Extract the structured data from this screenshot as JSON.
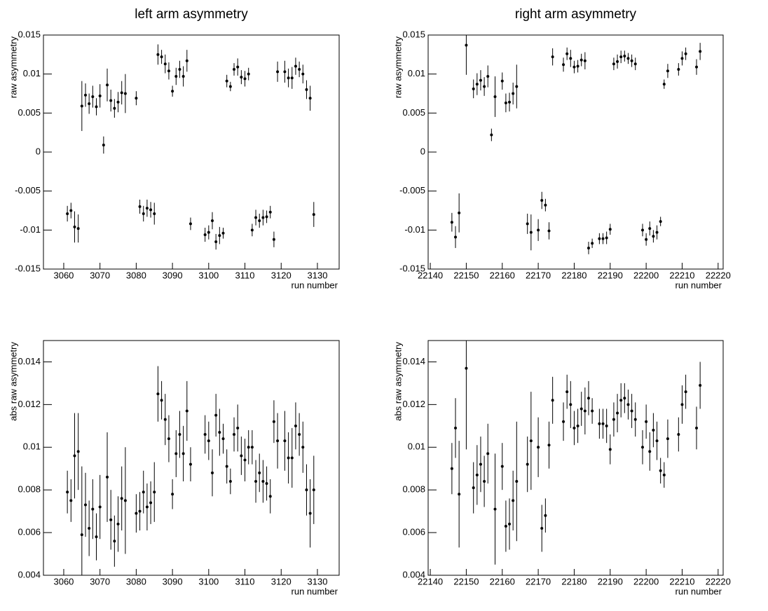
{
  "chart_data": [
    {
      "type": "scatter",
      "title": "left arm asymmetry",
      "x_label": "run number",
      "y_label": "raw asymmetry",
      "xlim": [
        3054.4,
        3136
      ],
      "ylim": [
        -0.015,
        0.015
      ],
      "xticks": [
        3060,
        3070,
        3080,
        3090,
        3100,
        3110,
        3120,
        3130
      ],
      "yticks": [
        -0.015,
        -0.01,
        -0.005,
        0,
        0.005,
        0.01,
        0.015
      ],
      "color": "#000000",
      "x": [
        3061,
        3062,
        3063,
        3064,
        3065,
        3066,
        3067,
        3068,
        3069,
        3070,
        3071,
        3072,
        3073,
        3074,
        3075,
        3076,
        3077,
        3080,
        3081,
        3082,
        3083,
        3084,
        3085,
        3086,
        3087,
        3088,
        3089,
        3090,
        3091,
        3092,
        3093,
        3094,
        3095,
        3099,
        3100,
        3101,
        3102,
        3103,
        3104,
        3105,
        3106,
        3107,
        3108,
        3109,
        3110,
        3111,
        3112,
        3113,
        3114,
        3115,
        3116,
        3117,
        3118,
        3119,
        3121,
        3122,
        3123,
        3124,
        3125,
        3126,
        3127,
        3128,
        3129
      ],
      "values": [
        -0.0079,
        -0.0075,
        -0.0096,
        -0.0098,
        0.0059,
        0.0073,
        0.0062,
        0.0071,
        0.0058,
        0.0072,
        0.0009,
        0.0086,
        0.0066,
        0.0056,
        0.0064,
        0.0076,
        0.0075,
        0.0069,
        -0.007,
        -0.0079,
        -0.0072,
        -0.0074,
        -0.0079,
        0.0125,
        0.0122,
        0.0113,
        0.0104,
        0.0078,
        0.0097,
        0.0106,
        0.0097,
        0.0117,
        -0.0092,
        -0.0106,
        -0.0103,
        -0.0088,
        -0.0115,
        -0.0107,
        -0.0104,
        0.0091,
        0.0084,
        0.0106,
        0.0109,
        0.0096,
        0.0094,
        0.01,
        -0.01,
        -0.0084,
        -0.0088,
        -0.0084,
        -0.0083,
        -0.0077,
        -0.0112,
        0.0103,
        0.0103,
        0.0095,
        0.0095,
        0.011,
        0.0106,
        0.01,
        0.008,
        0.0069,
        -0.008
      ],
      "errors": [
        0.001,
        0.001,
        0.002,
        0.0018,
        0.0032,
        0.0015,
        0.0013,
        0.0014,
        0.0011,
        0.0015,
        0.0011,
        0.0021,
        0.0014,
        0.0012,
        0.0013,
        0.0015,
        0.0025,
        0.0009,
        0.0009,
        0.001,
        0.0011,
        0.001,
        0.0014,
        0.0013,
        0.0009,
        0.0012,
        0.0011,
        0.0007,
        0.0011,
        0.0011,
        0.0013,
        0.0014,
        0.0008,
        0.0009,
        0.0009,
        0.0011,
        0.001,
        0.0011,
        0.0007,
        0.0008,
        0.0006,
        0.0008,
        0.0011,
        0.0009,
        0.001,
        0.0008,
        0.0008,
        0.001,
        0.0009,
        0.001,
        0.0008,
        0.0008,
        0.001,
        0.0013,
        0.0014,
        0.0012,
        0.0014,
        0.0011,
        0.001,
        0.0012,
        0.0012,
        0.0016,
        0.0016
      ]
    },
    {
      "type": "scatter",
      "title": "right arm asymmetry",
      "x_label": "run number",
      "y_label": "raw asymmetry",
      "xlim": [
        22139.4,
        22221.4
      ],
      "ylim": [
        -0.015,
        0.015
      ],
      "xticks": [
        22140,
        22150,
        22160,
        22170,
        22180,
        22190,
        22200,
        22210,
        22220
      ],
      "yticks": [
        -0.015,
        -0.01,
        -0.005,
        0,
        0.005,
        0.01,
        0.015
      ],
      "color": "#000000",
      "x": [
        22146,
        22147,
        22148,
        22150,
        22152,
        22153,
        22154,
        22155,
        22156,
        22157,
        22158,
        22160,
        22161,
        22162,
        22163,
        22164,
        22167,
        22168,
        22170,
        22171,
        22172,
        22173,
        22174,
        22177,
        22178,
        22179,
        22180,
        22181,
        22182,
        22183,
        22184,
        22185,
        22187,
        22188,
        22189,
        22190,
        22191,
        22192,
        22193,
        22194,
        22195,
        22196,
        22197,
        22199,
        22200,
        22201,
        22202,
        22203,
        22204,
        22205,
        22206,
        22209,
        22210,
        22211,
        22214,
        22215
      ],
      "values": [
        -0.009,
        -0.0109,
        -0.0078,
        0.0137,
        0.0081,
        0.0087,
        0.0092,
        0.0084,
        0.0097,
        0.0022,
        0.0071,
        0.0091,
        0.0063,
        0.0064,
        0.0075,
        0.0084,
        -0.0092,
        -0.0103,
        -0.01,
        -0.0062,
        -0.0068,
        -0.0101,
        0.0122,
        0.0112,
        0.0126,
        0.012,
        0.0109,
        0.011,
        0.0118,
        0.0117,
        -0.0123,
        -0.0117,
        -0.0111,
        -0.0111,
        -0.011,
        -0.0099,
        0.0113,
        0.0116,
        0.0122,
        0.0123,
        0.012,
        0.0117,
        0.0113,
        -0.01,
        -0.0112,
        -0.0098,
        -0.0108,
        -0.0103,
        -0.0089,
        0.0087,
        0.0104,
        0.0106,
        0.012,
        0.0126,
        0.0109,
        0.0129
      ],
      "errors": [
        0.0012,
        0.0014,
        0.0025,
        0.0038,
        0.0012,
        0.0014,
        0.0013,
        0.0012,
        0.0014,
        0.0008,
        0.0026,
        0.0011,
        0.0012,
        0.0012,
        0.0014,
        0.0028,
        0.0013,
        0.0023,
        0.0014,
        0.0011,
        0.0008,
        0.0011,
        0.0011,
        0.0009,
        0.0008,
        0.0011,
        0.0008,
        0.0008,
        0.0008,
        0.0011,
        0.0008,
        0.0006,
        0.0007,
        0.0007,
        0.0008,
        0.0007,
        0.0008,
        0.0009,
        0.0008,
        0.0007,
        0.0007,
        0.0008,
        0.0008,
        0.0008,
        0.0008,
        0.0009,
        0.0008,
        0.0009,
        0.0006,
        0.0006,
        0.0009,
        0.0008,
        0.0009,
        0.0008,
        0.001,
        0.0011
      ]
    },
    {
      "type": "scatter",
      "x_label": "run number",
      "y_label": "abs raw asymmetry",
      "xlim": [
        3054.4,
        3136
      ],
      "ylim": [
        0.004,
        0.015
      ],
      "xticks": [
        3060,
        3070,
        3080,
        3090,
        3100,
        3110,
        3120,
        3130
      ],
      "yticks": [
        0.004,
        0.006,
        0.008,
        0.01,
        0.012,
        0.014
      ],
      "color": "#000000",
      "x": [
        3061,
        3062,
        3063,
        3064,
        3065,
        3066,
        3067,
        3068,
        3069,
        3070,
        3072,
        3073,
        3074,
        3075,
        3076,
        3077,
        3080,
        3081,
        3082,
        3083,
        3084,
        3085,
        3086,
        3087,
        3088,
        3089,
        3090,
        3091,
        3092,
        3093,
        3094,
        3095,
        3099,
        3100,
        3101,
        3102,
        3103,
        3104,
        3105,
        3106,
        3107,
        3108,
        3109,
        3110,
        3111,
        3112,
        3113,
        3114,
        3115,
        3116,
        3117,
        3118,
        3119,
        3121,
        3122,
        3123,
        3124,
        3125,
        3126,
        3127,
        3128,
        3129
      ],
      "values": [
        0.0079,
        0.0075,
        0.0096,
        0.0098,
        0.0059,
        0.0073,
        0.0062,
        0.0071,
        0.0058,
        0.0072,
        0.0086,
        0.0066,
        0.0056,
        0.0064,
        0.0076,
        0.0075,
        0.0069,
        0.007,
        0.0079,
        0.0072,
        0.0074,
        0.0079,
        0.0125,
        0.0122,
        0.0113,
        0.0104,
        0.0078,
        0.0097,
        0.0106,
        0.0097,
        0.0117,
        0.0092,
        0.0106,
        0.0103,
        0.0088,
        0.0115,
        0.0107,
        0.0104,
        0.0091,
        0.0084,
        0.0106,
        0.0109,
        0.0096,
        0.0094,
        0.01,
        0.01,
        0.0084,
        0.0088,
        0.0084,
        0.0083,
        0.0077,
        0.0112,
        0.0103,
        0.0103,
        0.0095,
        0.0095,
        0.011,
        0.0106,
        0.01,
        0.008,
        0.0069,
        0.008
      ],
      "errors": [
        0.001,
        0.001,
        0.002,
        0.0018,
        0.0032,
        0.0015,
        0.0013,
        0.0014,
        0.0011,
        0.0015,
        0.0021,
        0.0014,
        0.0012,
        0.0013,
        0.0015,
        0.0025,
        0.0009,
        0.0009,
        0.001,
        0.0011,
        0.001,
        0.0014,
        0.0013,
        0.0009,
        0.0012,
        0.0011,
        0.0007,
        0.0011,
        0.0011,
        0.0013,
        0.0014,
        0.0008,
        0.0009,
        0.0009,
        0.0011,
        0.001,
        0.0011,
        0.0007,
        0.0008,
        0.0006,
        0.0008,
        0.0011,
        0.0009,
        0.001,
        0.0008,
        0.0008,
        0.001,
        0.0009,
        0.001,
        0.0008,
        0.0008,
        0.001,
        0.0013,
        0.0014,
        0.0012,
        0.0014,
        0.0011,
        0.001,
        0.0012,
        0.0012,
        0.0016,
        0.0016
      ]
    },
    {
      "type": "scatter",
      "x_label": "run number",
      "y_label": "abs raw asymmetry",
      "xlim": [
        22139.4,
        22221.4
      ],
      "ylim": [
        0.004,
        0.015
      ],
      "xticks": [
        22140,
        22150,
        22160,
        22170,
        22180,
        22190,
        22200,
        22210,
        22220
      ],
      "yticks": [
        0.004,
        0.006,
        0.008,
        0.01,
        0.012,
        0.014
      ],
      "color": "#000000",
      "x": [
        22146,
        22147,
        22148,
        22150,
        22152,
        22153,
        22154,
        22155,
        22156,
        22158,
        22160,
        22161,
        22162,
        22163,
        22164,
        22167,
        22168,
        22170,
        22171,
        22172,
        22173,
        22174,
        22177,
        22178,
        22179,
        22180,
        22181,
        22182,
        22183,
        22184,
        22185,
        22187,
        22188,
        22189,
        22190,
        22191,
        22192,
        22193,
        22194,
        22195,
        22196,
        22197,
        22199,
        22200,
        22201,
        22202,
        22203,
        22204,
        22205,
        22206,
        22209,
        22210,
        22211,
        22214,
        22215
      ],
      "values": [
        0.009,
        0.0109,
        0.0078,
        0.0137,
        0.0081,
        0.0087,
        0.0092,
        0.0084,
        0.0097,
        0.0071,
        0.0091,
        0.0063,
        0.0064,
        0.0075,
        0.0084,
        0.0092,
        0.0103,
        0.01,
        0.0062,
        0.0068,
        0.0101,
        0.0122,
        0.0112,
        0.0126,
        0.012,
        0.0109,
        0.011,
        0.0118,
        0.0117,
        0.0123,
        0.0117,
        0.0111,
        0.0111,
        0.011,
        0.0099,
        0.0113,
        0.0116,
        0.0122,
        0.0123,
        0.012,
        0.0117,
        0.0113,
        0.01,
        0.0112,
        0.0098,
        0.0108,
        0.0103,
        0.0089,
        0.0087,
        0.0104,
        0.0106,
        0.012,
        0.0126,
        0.0109,
        0.0129
      ],
      "errors": [
        0.0012,
        0.0014,
        0.0025,
        0.0038,
        0.0012,
        0.0014,
        0.0013,
        0.0012,
        0.0014,
        0.0026,
        0.0011,
        0.0012,
        0.0012,
        0.0014,
        0.0028,
        0.0013,
        0.0023,
        0.0014,
        0.0011,
        0.0008,
        0.0011,
        0.0011,
        0.0009,
        0.0008,
        0.0011,
        0.0008,
        0.0008,
        0.0008,
        0.0011,
        0.0008,
        0.0006,
        0.0007,
        0.0007,
        0.0008,
        0.0007,
        0.0008,
        0.0009,
        0.0008,
        0.0007,
        0.0007,
        0.0008,
        0.0008,
        0.0008,
        0.0008,
        0.0009,
        0.0008,
        0.0009,
        0.0006,
        0.0006,
        0.0009,
        0.0008,
        0.0009,
        0.0008,
        0.001,
        0.0011
      ]
    }
  ]
}
